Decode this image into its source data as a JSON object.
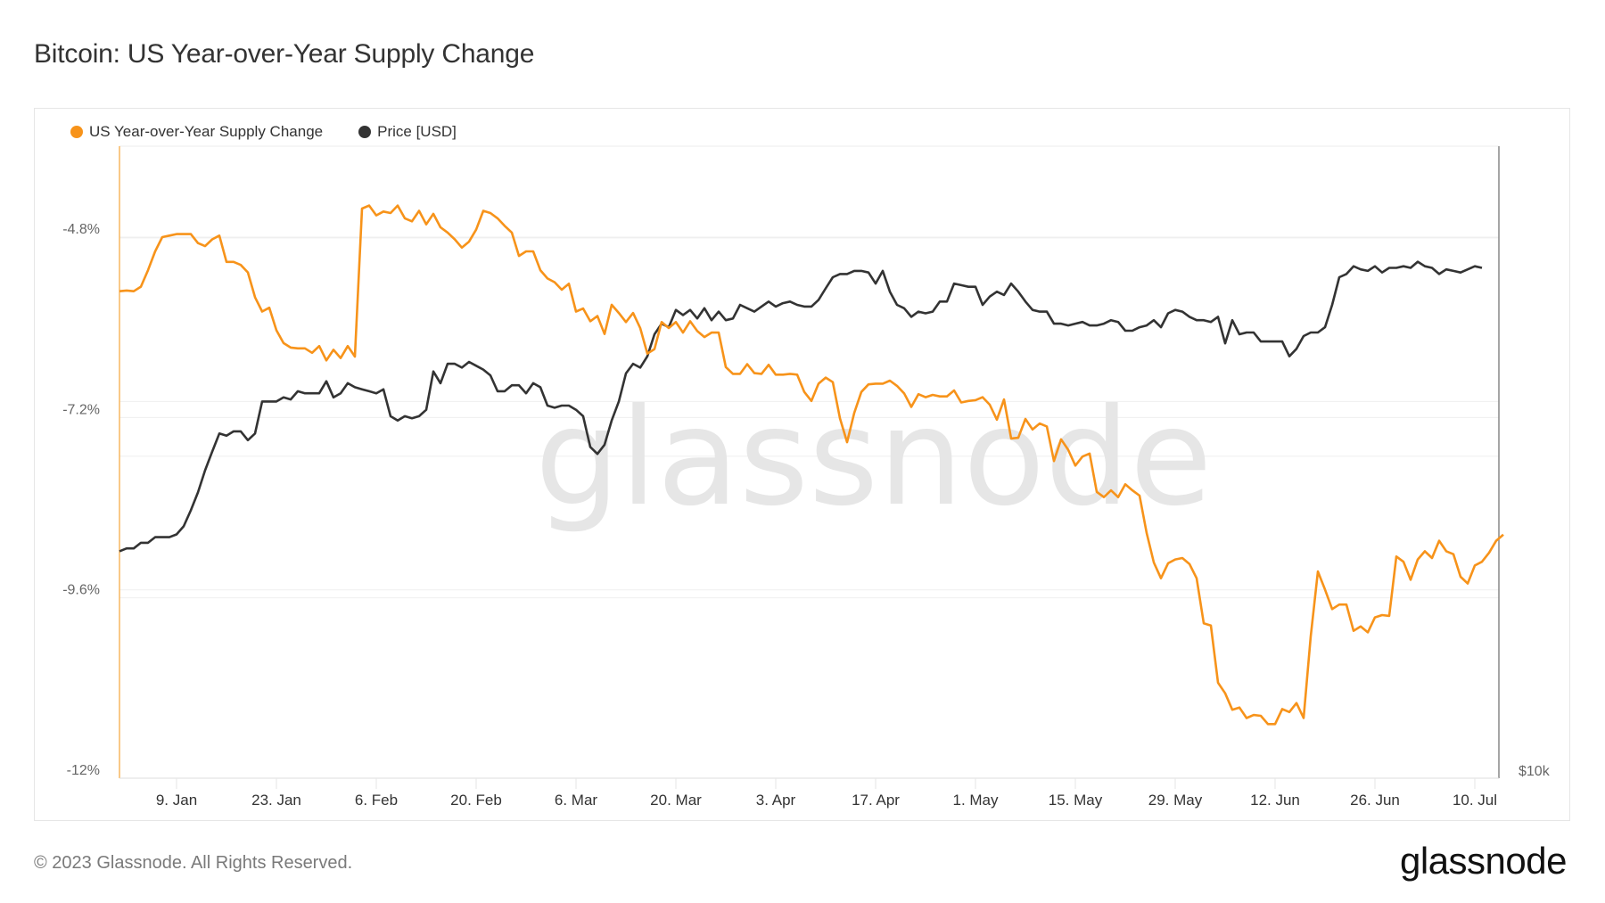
{
  "title": "Bitcoin: US Year-over-Year Supply Change",
  "footer": "© 2023 Glassnode. All Rights Reserved.",
  "logo": "glassnode",
  "watermark": "glassnode",
  "legend": [
    {
      "label": "US Year-over-Year Supply Change",
      "color": "#f7931a"
    },
    {
      "label": "Price [USD]",
      "color": "#333333"
    }
  ],
  "chart_data": {
    "type": "line",
    "title": "Bitcoin: US Year-over-Year Supply Change",
    "xlabel": "",
    "ylabel": "",
    "x_start": "2023-01-01",
    "x_step_days": 1,
    "x_ticks": [
      "9. Jan",
      "23. Jan",
      "6. Feb",
      "20. Feb",
      "6. Mar",
      "20. Mar",
      "3. Apr",
      "17. Apr",
      "1. May",
      "15. May",
      "29. May",
      "12. Jun",
      "26. Jun",
      "10. Jul"
    ],
    "x_tick_day_index": [
      8,
      22,
      36,
      50,
      64,
      78,
      92,
      106,
      120,
      134,
      148,
      162,
      176,
      190
    ],
    "y_left": {
      "ticks": [
        "-4.8%",
        "-7.2%",
        "-9.6%",
        "-12%"
      ],
      "tick_values": [
        -4.8,
        -7.2,
        -9.6,
        -12
      ],
      "range": [
        -12,
        -3.95
      ],
      "unit": "%"
    },
    "y_right": {
      "ticks": [
        "$10k"
      ],
      "tick_values": [
        10000
      ],
      "scale": "log",
      "range": [
        10000,
        39000
      ],
      "unit": "USD"
    },
    "grid": true,
    "legend_position": "top-left",
    "series": [
      {
        "name": "US Year-over-Year Supply Change",
        "axis": "left",
        "color": "#f7931a",
        "values": [
          -5.52,
          -5.51,
          -5.52,
          -5.46,
          -5.24,
          -4.99,
          -4.8,
          -4.78,
          -4.76,
          -4.76,
          -4.76,
          -4.88,
          -4.92,
          -4.83,
          -4.78,
          -5.13,
          -5.13,
          -5.17,
          -5.27,
          -5.6,
          -5.79,
          -5.74,
          -6.04,
          -6.21,
          -6.27,
          -6.28,
          -6.28,
          -6.34,
          -6.25,
          -6.44,
          -6.3,
          -6.41,
          -6.25,
          -6.39,
          -4.42,
          -4.38,
          -4.51,
          -4.46,
          -4.48,
          -4.38,
          -4.55,
          -4.59,
          -4.45,
          -4.63,
          -4.49,
          -4.67,
          -4.74,
          -4.83,
          -4.94,
          -4.86,
          -4.7,
          -4.45,
          -4.48,
          -4.55,
          -4.65,
          -4.74,
          -5.05,
          -4.99,
          -4.99,
          -5.24,
          -5.35,
          -5.4,
          -5.5,
          -5.42,
          -5.79,
          -5.75,
          -5.92,
          -5.85,
          -6.09,
          -5.7,
          -5.81,
          -5.93,
          -5.81,
          -6.01,
          -6.35,
          -6.29,
          -5.93,
          -6.01,
          -5.93,
          -6.07,
          -5.92,
          -6.05,
          -6.13,
          -6.07,
          -6.07,
          -6.53,
          -6.62,
          -6.62,
          -6.49,
          -6.61,
          -6.62,
          -6.5,
          -6.63,
          -6.63,
          -6.62,
          -6.63,
          -6.86,
          -6.98,
          -6.75,
          -6.67,
          -6.73,
          -7.21,
          -7.53,
          -7.14,
          -6.86,
          -6.76,
          -6.75,
          -6.75,
          -6.71,
          -6.78,
          -6.88,
          -7.06,
          -6.89,
          -6.93,
          -6.9,
          -6.92,
          -6.92,
          -6.84,
          -7.0,
          -6.98,
          -6.97,
          -6.93,
          -7.03,
          -7.23,
          -6.96,
          -7.48,
          -7.47,
          -7.22,
          -7.36,
          -7.28,
          -7.32,
          -7.78,
          -7.49,
          -7.63,
          -7.84,
          -7.72,
          -7.68,
          -8.19,
          -8.26,
          -8.17,
          -8.26,
          -8.09,
          -8.17,
          -8.24,
          -8.74,
          -9.13,
          -9.34,
          -9.14,
          -9.09,
          -9.07,
          -9.15,
          -9.34,
          -9.94,
          -9.97,
          -10.73,
          -10.87,
          -11.09,
          -11.06,
          -11.2,
          -11.16,
          -11.17,
          -11.28,
          -11.28,
          -11.08,
          -11.12,
          -11.0,
          -11.2,
          -10.11,
          -9.25,
          -9.49,
          -9.75,
          -9.69,
          -9.69,
          -10.04,
          -9.98,
          -10.06,
          -9.86,
          -9.83,
          -9.84,
          -9.05,
          -9.12,
          -9.36,
          -9.09,
          -8.98,
          -9.07,
          -8.84,
          -8.98,
          -9.02,
          -9.32,
          -9.41,
          -9.17,
          -9.12,
          -9.0,
          -8.84,
          -8.76
        ]
      },
      {
        "name": "Price [USD]",
        "axis": "right",
        "color": "#333333",
        "values": [
          16300,
          16400,
          16400,
          16600,
          16600,
          16800,
          16800,
          16800,
          16900,
          17200,
          17800,
          18500,
          19400,
          20200,
          21000,
          20900,
          21100,
          21100,
          20700,
          21000,
          22500,
          22500,
          22500,
          22700,
          22600,
          23000,
          22900,
          22900,
          22900,
          23500,
          22700,
          22900,
          23400,
          23200,
          23100,
          23000,
          22900,
          23100,
          21800,
          21600,
          21800,
          21700,
          21800,
          22100,
          24000,
          23400,
          24400,
          24400,
          24200,
          24500,
          24300,
          24100,
          23800,
          23000,
          23000,
          23300,
          23300,
          22900,
          23400,
          23200,
          22300,
          22200,
          22300,
          22300,
          22100,
          21800,
          20400,
          20100,
          20500,
          21600,
          22500,
          23900,
          24400,
          24200,
          24800,
          26000,
          26600,
          26400,
          27400,
          27100,
          27400,
          26900,
          27500,
          26800,
          27300,
          26800,
          26900,
          27700,
          27500,
          27300,
          27600,
          27900,
          27600,
          27800,
          27900,
          27700,
          27600,
          27600,
          28000,
          28700,
          29400,
          29600,
          29600,
          29800,
          29800,
          29700,
          29000,
          29800,
          28500,
          27700,
          27500,
          27000,
          27300,
          27200,
          27300,
          27900,
          27900,
          29000,
          28900,
          28800,
          28800,
          27700,
          28200,
          28500,
          28300,
          29000,
          28500,
          27900,
          27400,
          27300,
          27300,
          26600,
          26600,
          26500,
          26600,
          26700,
          26500,
          26500,
          26600,
          26800,
          26700,
          26200,
          26200,
          26400,
          26500,
          26800,
          26400,
          27200,
          27400,
          27300,
          27000,
          26800,
          26800,
          26700,
          27000,
          25500,
          26800,
          26000,
          26100,
          26100,
          25600,
          25600,
          25600,
          25600,
          24800,
          25200,
          25900,
          26100,
          26100,
          26400,
          27700,
          29400,
          29600,
          30100,
          29900,
          29800,
          30100,
          29700,
          30000,
          30000,
          30100,
          30000,
          30400,
          30100,
          30000,
          29600,
          29900,
          29800,
          29700,
          29900,
          30100,
          30000
        ]
      }
    ]
  }
}
